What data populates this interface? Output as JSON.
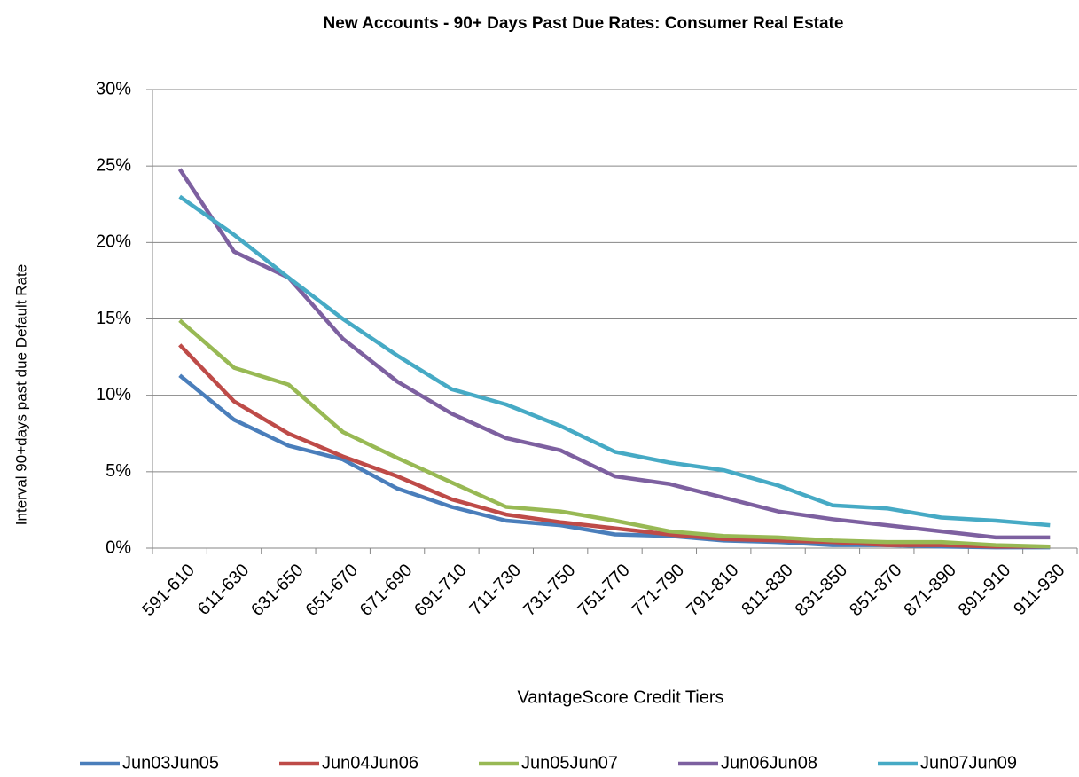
{
  "chart_data": {
    "type": "line",
    "title": "New Accounts - 90+ Days Past Due Rates: Consumer Real Estate",
    "x_label": "VantageScore Credit Tiers",
    "y_label": "Interval 90+days past due Default Rate",
    "categories": [
      "591-610",
      "611-630",
      "631-650",
      "651-670",
      "671-690",
      "691-710",
      "711-730",
      "731-750",
      "751-770",
      "771-790",
      "791-810",
      "811-830",
      "831-850",
      "851-870",
      "871-890",
      "891-910",
      "911-930"
    ],
    "series": [
      {
        "name": "Jun03Jun05",
        "color": "#4a7ebb",
        "values": [
          11.3,
          8.4,
          6.7,
          5.8,
          3.9,
          2.7,
          1.8,
          1.5,
          0.9,
          0.8,
          0.5,
          0.4,
          0.2,
          0.2,
          0.1,
          0.05,
          0.05
        ]
      },
      {
        "name": "Jun04Jun06",
        "color": "#be4b48",
        "values": [
          13.3,
          9.6,
          7.5,
          6.0,
          4.7,
          3.2,
          2.2,
          1.7,
          1.3,
          0.9,
          0.6,
          0.5,
          0.4,
          0.2,
          0.2,
          0.1,
          0.1
        ]
      },
      {
        "name": "Jun05Jun07",
        "color": "#98b954",
        "values": [
          14.9,
          11.8,
          10.7,
          7.6,
          5.9,
          4.3,
          2.7,
          2.4,
          1.8,
          1.1,
          0.8,
          0.7,
          0.5,
          0.4,
          0.4,
          0.2,
          0.1
        ]
      },
      {
        "name": "Jun06Jun08",
        "color": "#7d60a0",
        "values": [
          24.8,
          19.4,
          17.7,
          13.7,
          10.9,
          8.8,
          7.2,
          6.4,
          4.7,
          4.2,
          3.3,
          2.4,
          1.9,
          1.5,
          1.1,
          0.7,
          0.7
        ]
      },
      {
        "name": "Jun07Jun09",
        "color": "#46aac5",
        "values": [
          23.0,
          20.5,
          17.7,
          15.0,
          12.6,
          10.4,
          9.4,
          8.0,
          6.3,
          5.6,
          5.1,
          4.1,
          2.8,
          2.6,
          2.0,
          1.8,
          1.5
        ]
      }
    ],
    "ylim": [
      0,
      30
    ],
    "yticks": [
      {
        "value": 0,
        "label": "0%"
      },
      {
        "value": 5,
        "label": "5%"
      },
      {
        "value": 10,
        "label": "10%"
      },
      {
        "value": 15,
        "label": "15%"
      },
      {
        "value": 20,
        "label": "20%"
      },
      {
        "value": 25,
        "label": "25%"
      },
      {
        "value": 30,
        "label": "30%"
      }
    ],
    "grid": true,
    "legend": "bottom"
  }
}
